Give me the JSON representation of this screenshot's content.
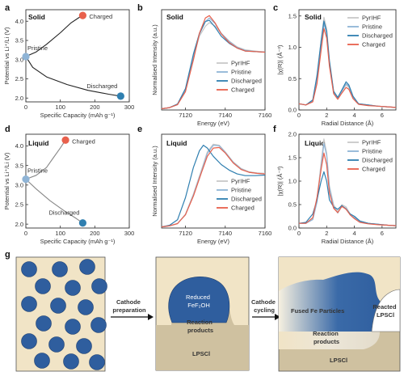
{
  "figure": {
    "panels": {
      "a": {
        "letter": "a",
        "title": "Solid"
      },
      "b": {
        "letter": "b",
        "title": "Solid"
      },
      "c": {
        "letter": "c",
        "title": "Solid"
      },
      "d": {
        "letter": "d",
        "title": "Liquid"
      },
      "e": {
        "letter": "e",
        "title": "Liquid"
      },
      "f": {
        "letter": "f",
        "title": "Liquid"
      },
      "g": {
        "letter": "g"
      }
    },
    "schematic": {
      "step1": "Cathode\npreparation",
      "step2": "Cathode\ncycling",
      "mid_particle": "Reduced\nFeF₂OH",
      "mid_products": "Reaction\nproducts",
      "mid_lpsci": "LPSCl",
      "right_particles": "Fused Fe Particles",
      "right_reacted": "Reacted\nLPSCl",
      "right_products": "Reaction\nproducts",
      "right_lpsci": "LPSCl"
    }
  },
  "colors": {
    "charged": "#e8604c",
    "pristine": "#8fb4d6",
    "discharged": "#2f7fb0",
    "pyrihf": "#c8c8c8",
    "solid_curve": "#222222",
    "liquid_curve": "#888888",
    "particle": "#2f5e9e",
    "matrix": "#f1e4c6",
    "lpsci": "#cfc1a0"
  },
  "chart_data": [
    {
      "panel": "a",
      "type": "line",
      "xlabel": "Specific Capacity (mAh g⁻¹)",
      "ylabel": "Potential vs Li⁺/Li (V)",
      "xlim": [
        0,
        300
      ],
      "ylim": [
        1.9,
        4.3
      ],
      "xticks": [
        0,
        100,
        200,
        300
      ],
      "yticks": [
        2.0,
        2.5,
        3.0,
        3.5,
        4.0
      ],
      "series": [
        {
          "x": [
            0,
            30,
            60,
            100,
            130,
            155,
            165
          ],
          "y": [
            3.08,
            3.2,
            3.4,
            3.7,
            3.95,
            4.1,
            4.15
          ]
        },
        {
          "x": [
            0,
            20,
            60,
            120,
            180,
            240,
            275
          ],
          "y": [
            3.08,
            2.8,
            2.55,
            2.35,
            2.2,
            2.1,
            2.05
          ]
        }
      ],
      "markers": [
        {
          "label": "Pristine",
          "x": 0,
          "y": 3.08,
          "color": "#8fb4d6"
        },
        {
          "label": "Charged",
          "x": 165,
          "y": 4.15,
          "color": "#e8604c"
        },
        {
          "label": "Discharged",
          "x": 275,
          "y": 2.05,
          "color": "#2f7fb0"
        }
      ]
    },
    {
      "panel": "d",
      "type": "line",
      "xlabel": "Specific Capacity (mAh g⁻¹)",
      "ylabel": "Potential vs Li⁺/Li (V)",
      "xlim": [
        0,
        300
      ],
      "ylim": [
        1.9,
        4.3
      ],
      "xticks": [
        0,
        100,
        200,
        300
      ],
      "yticks": [
        2.0,
        2.5,
        3.0,
        3.5,
        4.0
      ],
      "series": [
        {
          "x": [
            0,
            30,
            60,
            80,
            100,
            115
          ],
          "y": [
            3.15,
            3.25,
            3.45,
            3.7,
            3.95,
            4.15
          ]
        },
        {
          "x": [
            0,
            30,
            70,
            110,
            145,
            165
          ],
          "y": [
            3.15,
            2.9,
            2.6,
            2.35,
            2.15,
            2.03
          ]
        }
      ],
      "markers": [
        {
          "label": "Pristine",
          "x": 0,
          "y": 3.15,
          "color": "#8fb4d6"
        },
        {
          "label": "Charged",
          "x": 115,
          "y": 4.15,
          "color": "#e8604c"
        },
        {
          "label": "Discharged",
          "x": 165,
          "y": 2.03,
          "color": "#2f7fb0"
        }
      ]
    },
    {
      "panel": "b",
      "type": "line",
      "xlabel": "Energy (eV)",
      "ylabel": "Normalised Intensity (a.u.)",
      "xlim": [
        7108,
        7160
      ],
      "xticks": [
        7120,
        7140,
        7160
      ],
      "series": [
        {
          "name": "PyrIHF",
          "x": [
            7108,
            7112,
            7116,
            7120,
            7124,
            7127,
            7130,
            7132,
            7135,
            7138,
            7142,
            7146,
            7150,
            7155,
            7160
          ],
          "y": [
            0.02,
            0.04,
            0.1,
            0.35,
            0.9,
            1.25,
            1.42,
            1.48,
            1.42,
            1.3,
            1.17,
            1.07,
            1.02,
            1.0,
            0.98
          ]
        },
        {
          "name": "Pristine",
          "x": [
            7108,
            7112,
            7116,
            7120,
            7124,
            7127,
            7130,
            7132,
            7135,
            7138,
            7142,
            7146,
            7150,
            7155,
            7160
          ],
          "y": [
            0.02,
            0.04,
            0.09,
            0.32,
            0.88,
            1.28,
            1.5,
            1.56,
            1.46,
            1.3,
            1.16,
            1.06,
            1.01,
            0.99,
            0.98
          ]
        },
        {
          "name": "Discharged",
          "x": [
            7108,
            7112,
            7116,
            7120,
            7124,
            7127,
            7130,
            7132,
            7135,
            7138,
            7142,
            7146,
            7150,
            7155,
            7160
          ],
          "y": [
            0.02,
            0.04,
            0.1,
            0.36,
            0.95,
            1.3,
            1.5,
            1.52,
            1.4,
            1.25,
            1.13,
            1.05,
            1.0,
            0.99,
            0.98
          ]
        },
        {
          "name": "Charged",
          "x": [
            7108,
            7112,
            7116,
            7120,
            7124,
            7127,
            7130,
            7132,
            7135,
            7138,
            7142,
            7146,
            7150,
            7155,
            7160
          ],
          "y": [
            0.02,
            0.04,
            0.09,
            0.31,
            0.85,
            1.3,
            1.56,
            1.6,
            1.47,
            1.29,
            1.14,
            1.05,
            1.0,
            0.99,
            0.98
          ]
        }
      ],
      "legend": [
        "PyrIHF",
        "Pristine",
        "Discharged",
        "Charged"
      ],
      "ylim": [
        0,
        1.7
      ]
    },
    {
      "panel": "e",
      "type": "line",
      "xlabel": "Energy (eV)",
      "ylabel": "Normalised Intensity (a.u.)",
      "xlim": [
        7108,
        7160
      ],
      "xticks": [
        7120,
        7140,
        7160
      ],
      "series": [
        {
          "name": "PyrIHF",
          "x": [
            7108,
            7112,
            7116,
            7120,
            7124,
            7128,
            7131,
            7134,
            7137,
            7140,
            7144,
            7148,
            7152,
            7156,
            7160
          ],
          "y": [
            0.02,
            0.04,
            0.08,
            0.25,
            0.62,
            1.05,
            1.38,
            1.52,
            1.5,
            1.38,
            1.2,
            1.08,
            1.02,
            1.0,
            0.99
          ]
        },
        {
          "name": "Pristine",
          "x": [
            7108,
            7112,
            7116,
            7120,
            7124,
            7128,
            7131,
            7134,
            7137,
            7140,
            7144,
            7148,
            7152,
            7156,
            7160
          ],
          "y": [
            0.02,
            0.04,
            0.08,
            0.24,
            0.6,
            1.02,
            1.35,
            1.5,
            1.49,
            1.37,
            1.19,
            1.07,
            1.01,
            0.99,
            0.98
          ]
        },
        {
          "name": "Discharged",
          "x": [
            7108,
            7112,
            7116,
            7120,
            7124,
            7127,
            7129,
            7131,
            7134,
            7138,
            7142,
            7146,
            7150,
            7155,
            7160
          ],
          "y": [
            0.02,
            0.05,
            0.15,
            0.55,
            1.1,
            1.4,
            1.5,
            1.45,
            1.3,
            1.15,
            1.05,
            0.98,
            0.95,
            0.95,
            0.96
          ]
        },
        {
          "name": "Charged",
          "x": [
            7108,
            7112,
            7116,
            7120,
            7124,
            7128,
            7131,
            7134,
            7137,
            7140,
            7144,
            7148,
            7152,
            7156,
            7160
          ],
          "y": [
            0.02,
            0.04,
            0.08,
            0.24,
            0.58,
            1.0,
            1.3,
            1.45,
            1.46,
            1.36,
            1.18,
            1.06,
            1.01,
            0.99,
            0.98
          ]
        }
      ],
      "legend": [
        "PyrIHF",
        "Pristine",
        "Discharged",
        "Charged"
      ],
      "ylim": [
        0,
        1.7
      ]
    },
    {
      "panel": "c",
      "type": "line",
      "xlabel": "Radial Distance (Å)",
      "ylabel": "|χ(R)| (Å⁻³)",
      "xlim": [
        0,
        7
      ],
      "ylim": [
        0,
        1.6
      ],
      "xticks": [
        0,
        2,
        4,
        6
      ],
      "yticks": [
        0.0,
        0.5,
        1.0,
        1.5
      ],
      "series": [
        {
          "name": "PyrIHF",
          "x": [
            0,
            0.5,
            1.0,
            1.3,
            1.6,
            1.8,
            2.0,
            2.2,
            2.5,
            2.8,
            3.1,
            3.4,
            3.6,
            3.9,
            4.3,
            5.0,
            5.7,
            6.4,
            7.0
          ],
          "y": [
            0.1,
            0.08,
            0.15,
            0.5,
            1.1,
            1.48,
            1.3,
            0.8,
            0.3,
            0.2,
            0.3,
            0.4,
            0.36,
            0.2,
            0.1,
            0.08,
            0.06,
            0.05,
            0.04
          ]
        },
        {
          "name": "Pristine",
          "x": [
            0,
            0.5,
            1.0,
            1.3,
            1.6,
            1.8,
            2.0,
            2.2,
            2.5,
            2.8,
            3.1,
            3.4,
            3.6,
            3.9,
            4.3,
            5.0,
            5.7,
            6.4,
            7.0
          ],
          "y": [
            0.1,
            0.08,
            0.14,
            0.45,
            1.0,
            1.38,
            1.22,
            0.75,
            0.28,
            0.18,
            0.3,
            0.42,
            0.38,
            0.2,
            0.1,
            0.08,
            0.06,
            0.05,
            0.04
          ]
        },
        {
          "name": "Discharged",
          "x": [
            0,
            0.5,
            1.0,
            1.3,
            1.6,
            1.8,
            2.0,
            2.2,
            2.5,
            2.8,
            3.1,
            3.4,
            3.6,
            3.9,
            4.3,
            5.0,
            5.7,
            6.4,
            7.0
          ],
          "y": [
            0.1,
            0.08,
            0.16,
            0.55,
            1.1,
            1.42,
            1.25,
            0.78,
            0.3,
            0.2,
            0.32,
            0.45,
            0.4,
            0.22,
            0.1,
            0.08,
            0.06,
            0.05,
            0.04
          ]
        },
        {
          "name": "Charged",
          "x": [
            0,
            0.5,
            1.0,
            1.3,
            1.6,
            1.8,
            2.0,
            2.2,
            2.5,
            2.8,
            3.1,
            3.4,
            3.6,
            3.9,
            4.3,
            5.0,
            5.7,
            6.4,
            7.0
          ],
          "y": [
            0.1,
            0.08,
            0.13,
            0.42,
            0.95,
            1.3,
            1.15,
            0.7,
            0.26,
            0.17,
            0.27,
            0.36,
            0.33,
            0.18,
            0.09,
            0.07,
            0.06,
            0.05,
            0.04
          ]
        }
      ],
      "legend": [
        "PyrIHF",
        "Pristine",
        "Discharged",
        "Charged"
      ]
    },
    {
      "panel": "f",
      "type": "line",
      "xlabel": "Radial Distance (Å)",
      "ylabel": "|χ(R)| (Å⁻³)",
      "xlim": [
        0,
        7
      ],
      "ylim": [
        0,
        2.0
      ],
      "xticks": [
        0,
        2,
        4,
        6
      ],
      "yticks": [
        0.0,
        0.5,
        1.0,
        1.5,
        2.0
      ],
      "series": [
        {
          "name": "PyrIHF",
          "x": [
            0,
            0.5,
            1.0,
            1.3,
            1.6,
            1.8,
            2.0,
            2.2,
            2.5,
            2.8,
            3.1,
            3.4,
            3.7,
            4.0,
            4.4,
            5.0,
            5.7,
            6.4,
            7.0
          ],
          "y": [
            0.1,
            0.1,
            0.2,
            0.6,
            1.4,
            1.9,
            1.6,
            0.9,
            0.5,
            0.35,
            0.5,
            0.45,
            0.3,
            0.25,
            0.15,
            0.1,
            0.08,
            0.06,
            0.05
          ]
        },
        {
          "name": "Pristine",
          "x": [
            0,
            0.5,
            1.0,
            1.3,
            1.6,
            1.8,
            2.0,
            2.2,
            2.5,
            2.8,
            3.1,
            3.4,
            3.7,
            4.0,
            4.4,
            5.0,
            5.7,
            6.4,
            7.0
          ],
          "y": [
            0.1,
            0.1,
            0.18,
            0.55,
            1.3,
            1.8,
            1.55,
            0.85,
            0.45,
            0.32,
            0.47,
            0.42,
            0.28,
            0.22,
            0.14,
            0.1,
            0.08,
            0.06,
            0.05
          ]
        },
        {
          "name": "Discharged",
          "x": [
            0,
            0.5,
            1.0,
            1.3,
            1.6,
            1.8,
            2.0,
            2.2,
            2.5,
            2.8,
            3.1,
            3.4,
            3.7,
            4.0,
            4.4,
            5.0,
            5.7,
            6.4,
            7.0
          ],
          "y": [
            0.1,
            0.12,
            0.3,
            0.6,
            1.0,
            1.2,
            1.0,
            0.6,
            0.45,
            0.4,
            0.48,
            0.4,
            0.3,
            0.25,
            0.15,
            0.1,
            0.08,
            0.06,
            0.05
          ]
        },
        {
          "name": "Charged",
          "x": [
            0,
            0.5,
            1.0,
            1.3,
            1.6,
            1.8,
            2.0,
            2.2,
            2.5,
            2.8,
            3.1,
            3.4,
            3.7,
            4.0,
            4.4,
            5.0,
            5.7,
            6.4,
            7.0
          ],
          "y": [
            0.1,
            0.1,
            0.22,
            0.65,
            1.25,
            1.6,
            1.35,
            0.75,
            0.42,
            0.33,
            0.46,
            0.4,
            0.28,
            0.2,
            0.12,
            0.09,
            0.07,
            0.06,
            0.05
          ]
        }
      ],
      "legend": [
        "PyrIHF",
        "Pristine",
        "Discharged",
        "Charged"
      ]
    }
  ]
}
